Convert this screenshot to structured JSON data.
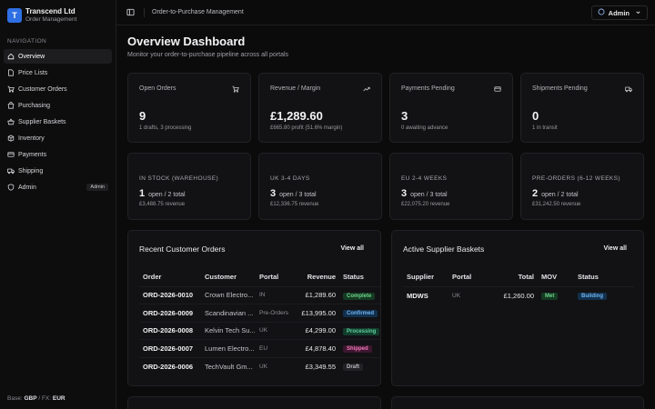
{
  "brand": {
    "logo_letter": "T",
    "name": "Transcend Ltd",
    "subtitle": "Order Management"
  },
  "sidebar": {
    "section": "NAVIGATION",
    "items": [
      {
        "label": "Overview",
        "icon": "home-icon",
        "active": true
      },
      {
        "label": "Price Lists",
        "icon": "file-icon"
      },
      {
        "label": "Customer Orders",
        "icon": "cart-icon"
      },
      {
        "label": "Purchasing",
        "icon": "bag-icon"
      },
      {
        "label": "Supplier Baskets",
        "icon": "basket-icon"
      },
      {
        "label": "Inventory",
        "icon": "box-icon"
      },
      {
        "label": "Payments",
        "icon": "card-icon"
      },
      {
        "label": "Shipping",
        "icon": "truck-icon"
      },
      {
        "label": "Admin",
        "icon": "shield-icon",
        "badge": "Admin"
      }
    ],
    "footer": {
      "base_label": "Base:",
      "base": "GBP",
      "fx_label": "/ FX:",
      "fx": "EUR"
    }
  },
  "topbar": {
    "breadcrumb": "Order-to-Purchase Management",
    "user": "Admin"
  },
  "page": {
    "title": "Overview Dashboard",
    "subtitle": "Monitor your order-to-purchase pipeline across all portals"
  },
  "kpis": [
    {
      "label": "Open Orders",
      "value": "9",
      "note": "1 drafts, 3 processing",
      "icon": "cart-icon"
    },
    {
      "label": "Revenue / Margin",
      "value": "£1,289.60",
      "note": "£665.80 profit (51.6% margin)",
      "icon": "trend-up-icon"
    },
    {
      "label": "Payments Pending",
      "value": "3",
      "note": "0 awaiting advance",
      "icon": "card-icon"
    },
    {
      "label": "Shipments Pending",
      "value": "0",
      "note": "1 in transit",
      "icon": "truck-icon"
    }
  ],
  "regions": [
    {
      "label": "IN STOCK (WAREHOUSE)",
      "count": "1",
      "open": "open / 2 total",
      "revenue": "£3,488.75 revenue"
    },
    {
      "label": "UK 3-4 DAYS",
      "count": "3",
      "open": "open / 3 total",
      "revenue": "£12,336.75 revenue"
    },
    {
      "label": "EU 2-4 WEEKS",
      "count": "3",
      "open": "open / 3 total",
      "revenue": "£22,075.20 revenue"
    },
    {
      "label": "PRE-ORDERS (6-12 WEEKS)",
      "count": "2",
      "open": "open / 2 total",
      "revenue": "£31,242.50 revenue"
    }
  ],
  "recent_orders": {
    "title": "Recent Customer Orders",
    "view_all": "View all",
    "columns": [
      "Order",
      "Customer",
      "Portal",
      "Revenue",
      "Status"
    ],
    "rows": [
      {
        "order": "ORD-2026-0010",
        "customer": "Crown Electro...",
        "portal": "IN",
        "revenue": "£1,289.60",
        "status": "Complete",
        "status_class": "b-complete"
      },
      {
        "order": "ORD-2026-0009",
        "customer": "Scandinavian ...",
        "portal": "Pre-Orders",
        "revenue": "£13,995.00",
        "status": "Confirmed",
        "status_class": "b-confirmed"
      },
      {
        "order": "ORD-2026-0008",
        "customer": "Kelvin Tech Su...",
        "portal": "UK",
        "revenue": "£4,299.00",
        "status": "Processing",
        "status_class": "b-processing"
      },
      {
        "order": "ORD-2026-0007",
        "customer": "Lumen Electro...",
        "portal": "EU",
        "revenue": "£4,878.40",
        "status": "Shipped",
        "status_class": "b-shipped"
      },
      {
        "order": "ORD-2026-0006",
        "customer": "TechVault Gm...",
        "portal": "UK",
        "revenue": "£3,349.55",
        "status": "Draft",
        "status_class": "b-draft"
      }
    ]
  },
  "supplier_baskets": {
    "title": "Active Supplier Baskets",
    "view_all": "View all",
    "columns": [
      "Supplier",
      "Portal",
      "Total",
      "MOV",
      "Status"
    ],
    "rows": [
      {
        "supplier": "MDWS",
        "portal": "UK",
        "total": "£1,260.00",
        "mov": "Met",
        "status": "Building"
      }
    ]
  }
}
